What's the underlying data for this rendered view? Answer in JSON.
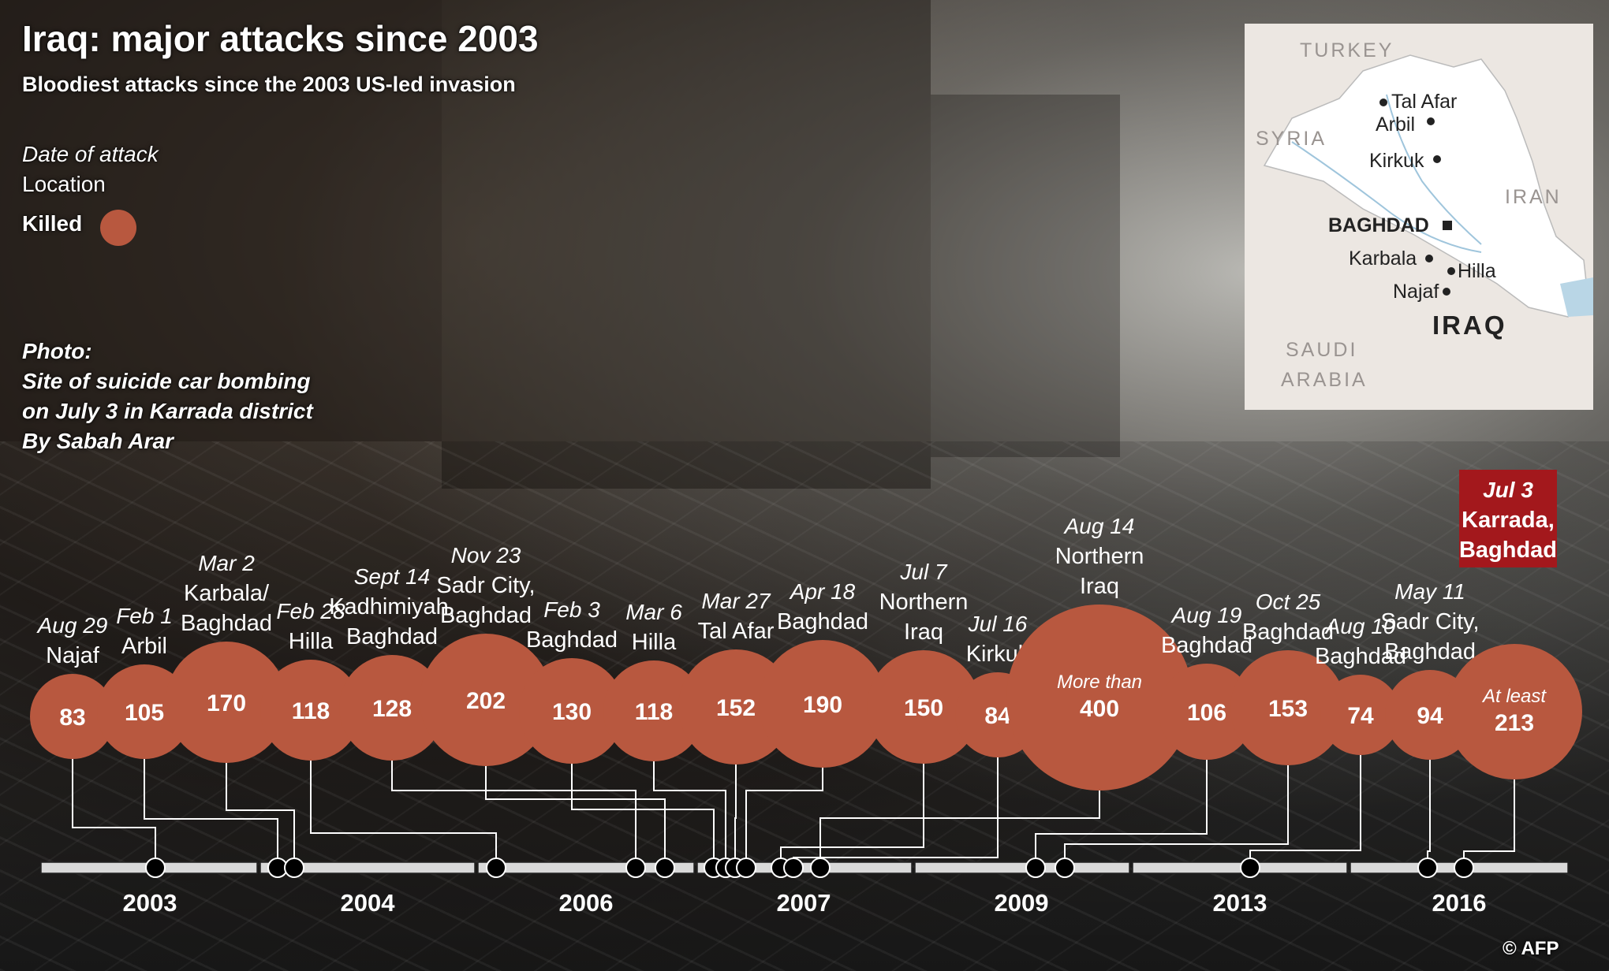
{
  "title": "Iraq: major attacks since 2003",
  "subtitle": "Bloodiest attacks since the 2003 US-led invasion",
  "key": {
    "date": "Date of attack",
    "location": "Location",
    "killed": "Killed"
  },
  "photo_credit": {
    "line1": "Photo:",
    "line2": "Site of suicide car bombing",
    "line3": "on July 3 in Karrada district",
    "line4": "By Sabah Arar"
  },
  "map": {
    "countries": [
      "TURKEY",
      "SYRIA",
      "IRAN",
      "SAUDI",
      "ARABIA",
      "IRAQ"
    ],
    "capital": "BAGHDAD",
    "cities": [
      "Tal Afar",
      "Arbil",
      "Kirkuk",
      "Karbala",
      "Hilla",
      "Najaf"
    ]
  },
  "credit": "© AFP",
  "colors": {
    "bubble": "#b8583f",
    "highlight": "#a3181c",
    "axis": "#d9d9d9"
  },
  "chart_data": {
    "type": "timeline-bubble",
    "title": "Iraq: major attacks since 2003",
    "subtitle": "Bloodiest attacks since the 2003 US-led invasion",
    "axis_years": [
      "2003",
      "2004",
      "2006",
      "2007",
      "2009",
      "2013",
      "2016"
    ],
    "events": [
      {
        "date": "Aug 29",
        "location": [
          "Najaf"
        ],
        "killed": 83,
        "label": "83"
      },
      {
        "date": "Feb 1",
        "location": [
          "Arbil"
        ],
        "killed": 105,
        "label": "105"
      },
      {
        "date": "Mar 2",
        "location": [
          "Karbala/",
          "Baghdad"
        ],
        "killed": 170,
        "label": "170"
      },
      {
        "date": "Feb 28",
        "location": [
          "Hilla"
        ],
        "killed": 118,
        "label": "118"
      },
      {
        "date": "Sept 14",
        "location": [
          "Kadhimiyah,",
          "Baghdad"
        ],
        "killed": 128,
        "label": "128"
      },
      {
        "date": "Nov 23",
        "location": [
          "Sadr City,",
          "Baghdad"
        ],
        "killed": 202,
        "label": "202"
      },
      {
        "date": "Feb 3",
        "location": [
          "Baghdad"
        ],
        "killed": 130,
        "label": "130"
      },
      {
        "date": "Mar 6",
        "location": [
          "Hilla"
        ],
        "killed": 118,
        "label": "118"
      },
      {
        "date": "Mar 27",
        "location": [
          "Tal Afar"
        ],
        "killed": 152,
        "label": "152"
      },
      {
        "date": "Apr 18",
        "location": [
          "Baghdad"
        ],
        "killed": 190,
        "label": "190"
      },
      {
        "date": "Jul 7",
        "location": [
          "Northern",
          "Iraq"
        ],
        "killed": 150,
        "label": "150"
      },
      {
        "date": "Jul 16",
        "location": [
          "Kirkuk"
        ],
        "killed": 84,
        "label": "84"
      },
      {
        "date": "Aug 14",
        "location": [
          "Northern",
          "Iraq"
        ],
        "killed": 400,
        "label": "400",
        "prefix": "More than"
      },
      {
        "date": "Aug 19",
        "location": [
          "Baghdad"
        ],
        "killed": 106,
        "label": "106"
      },
      {
        "date": "Oct 25",
        "location": [
          "Baghdad"
        ],
        "killed": 153,
        "label": "153"
      },
      {
        "date": "Aug 10",
        "location": [
          "Baghdad"
        ],
        "killed": 74,
        "label": "74"
      },
      {
        "date": "May 11",
        "location": [
          "Sadr City,",
          "Baghdad"
        ],
        "killed": 94,
        "label": "94"
      },
      {
        "date": "Jul 3",
        "location": [
          "Karrada,",
          "Baghdad"
        ],
        "killed": 213,
        "label": "213",
        "prefix": "At least",
        "highlight": true
      }
    ]
  }
}
